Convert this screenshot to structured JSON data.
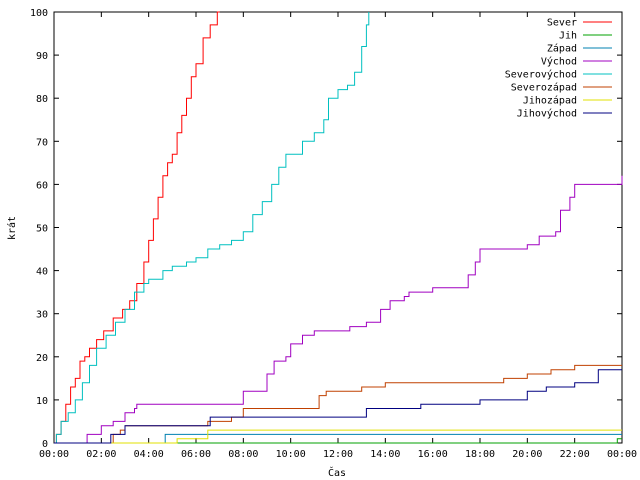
{
  "chart_data": {
    "type": "line",
    "title": "",
    "xlabel": "Čas",
    "ylabel": "krát",
    "xlim": [
      0,
      24
    ],
    "ylim": [
      0,
      100
    ],
    "x_ticks": [
      {
        "v": 0,
        "label": "00:00"
      },
      {
        "v": 2,
        "label": "02:00"
      },
      {
        "v": 4,
        "label": "04:00"
      },
      {
        "v": 6,
        "label": "06:00"
      },
      {
        "v": 8,
        "label": "08:00"
      },
      {
        "v": 10,
        "label": "10:00"
      },
      {
        "v": 12,
        "label": "12:00"
      },
      {
        "v": 14,
        "label": "14:00"
      },
      {
        "v": 16,
        "label": "16:00"
      },
      {
        "v": 18,
        "label": "18:00"
      },
      {
        "v": 20,
        "label": "20:00"
      },
      {
        "v": 22,
        "label": "22:00"
      },
      {
        "v": 24,
        "label": "00:00"
      }
    ],
    "y_ticks": [
      {
        "v": 0,
        "label": "0"
      },
      {
        "v": 10,
        "label": "10"
      },
      {
        "v": 20,
        "label": "20"
      },
      {
        "v": 30,
        "label": "30"
      },
      {
        "v": 40,
        "label": "40"
      },
      {
        "v": 50,
        "label": "50"
      },
      {
        "v": 60,
        "label": "60"
      },
      {
        "v": 70,
        "label": "70"
      },
      {
        "v": 80,
        "label": "80"
      },
      {
        "v": 90,
        "label": "90"
      },
      {
        "v": 100,
        "label": "100"
      }
    ],
    "grid": false,
    "legend_position": "top-right",
    "series": [
      {
        "name": "Sever",
        "color": "#ff0000",
        "x": [
          0,
          0.1,
          0.3,
          0.5,
          0.7,
          0.9,
          1.1,
          1.3,
          1.5,
          1.8,
          2.1,
          2.5,
          2.9,
          3.2,
          3.5,
          3.8,
          4.0,
          4.2,
          4.4,
          4.6,
          4.8,
          5.0,
          5.2,
          5.4,
          5.6,
          5.8,
          6.0,
          6.3,
          6.6,
          6.9,
          7.0
        ],
        "y": [
          0,
          2,
          5,
          9,
          13,
          15,
          19,
          20,
          22,
          24,
          26,
          29,
          31,
          33,
          37,
          42,
          47,
          52,
          57,
          62,
          65,
          67,
          72,
          76,
          80,
          85,
          88,
          94,
          97,
          100,
          100
        ]
      },
      {
        "name": "Jih",
        "color": "#00a000",
        "x": [
          0,
          23.7,
          23.8,
          24
        ],
        "y": [
          0,
          0,
          1,
          1
        ]
      },
      {
        "name": "Západ",
        "color": "#0080b0",
        "x": [
          0,
          4.6,
          4.7,
          24
        ],
        "y": [
          0,
          0,
          2,
          2
        ]
      },
      {
        "name": "Východ",
        "color": "#a000c0",
        "x": [
          0,
          1.3,
          1.4,
          1.8,
          2.0,
          2.5,
          3.0,
          3.4,
          3.5,
          5.0,
          6.5,
          7.7,
          8.0,
          8.5,
          9.0,
          9.3,
          9.8,
          10.0,
          10.5,
          11.0,
          12.0,
          12.5,
          13.2,
          13.8,
          14.2,
          14.8,
          15.0,
          16.0,
          17.2,
          17.5,
          17.8,
          18.0,
          19.5,
          20.0,
          20.5,
          21.2,
          21.4,
          21.8,
          22.0,
          23.0,
          24.0
        ],
        "y": [
          0,
          0,
          2,
          2,
          4,
          5,
          7,
          8,
          9,
          9,
          9,
          9,
          12,
          12,
          16,
          19,
          20,
          23,
          25,
          26,
          26,
          27,
          28,
          31,
          33,
          34,
          35,
          36,
          36,
          39,
          42,
          45,
          45,
          46,
          48,
          49,
          54,
          57,
          60,
          60,
          62
        ]
      },
      {
        "name": "Severovýchod",
        "color": "#00c0c0",
        "x": [
          0,
          0.1,
          0.3,
          0.6,
          0.9,
          1.2,
          1.5,
          1.8,
          2.2,
          2.6,
          3.0,
          3.4,
          3.8,
          4.0,
          4.6,
          5.0,
          5.6,
          6.0,
          6.5,
          7.0,
          7.5,
          8.0,
          8.4,
          8.8,
          9.2,
          9.5,
          9.8,
          10.0,
          10.5,
          11.0,
          11.4,
          11.6,
          12.0,
          12.4,
          12.7,
          13.0,
          13.2,
          13.3
        ],
        "y": [
          0,
          2,
          5,
          7,
          10,
          14,
          18,
          22,
          25,
          28,
          31,
          35,
          37,
          38,
          40,
          41,
          42,
          43,
          45,
          46,
          47,
          49,
          53,
          56,
          60,
          64,
          67,
          67,
          70,
          72,
          75,
          80,
          82,
          83,
          86,
          92,
          97,
          100
        ]
      },
      {
        "name": "Severozápad",
        "color": "#c04000",
        "x": [
          0,
          2.4,
          2.5,
          2.8,
          3.0,
          6.0,
          6.5,
          7.5,
          8.0,
          10.9,
          11.2,
          11.5,
          12.0,
          13.0,
          13.5,
          14.0,
          18.0,
          19.0,
          20.0,
          21.0,
          22.0,
          24.0
        ],
        "y": [
          0,
          0,
          2,
          3,
          4,
          4,
          5,
          6,
          8,
          8,
          11,
          12,
          12,
          13,
          13,
          14,
          14,
          15,
          16,
          17,
          18,
          18
        ]
      },
      {
        "name": "Jihozápad",
        "color": "#e0e000",
        "x": [
          0,
          5.0,
          5.2,
          6.4,
          6.5,
          24.0
        ],
        "y": [
          0,
          0,
          1,
          1,
          3,
          3
        ]
      },
      {
        "name": "Jihovýchod",
        "color": "#000080",
        "x": [
          0,
          2.3,
          2.4,
          3.0,
          6.4,
          6.6,
          13.0,
          13.2,
          15.5,
          17.5,
          18.0,
          20.0,
          20.8,
          22.0,
          23.0,
          24.0
        ],
        "y": [
          0,
          0,
          2,
          4,
          4,
          6,
          6,
          8,
          9,
          9,
          10,
          12,
          13,
          14,
          17,
          17
        ]
      }
    ]
  }
}
